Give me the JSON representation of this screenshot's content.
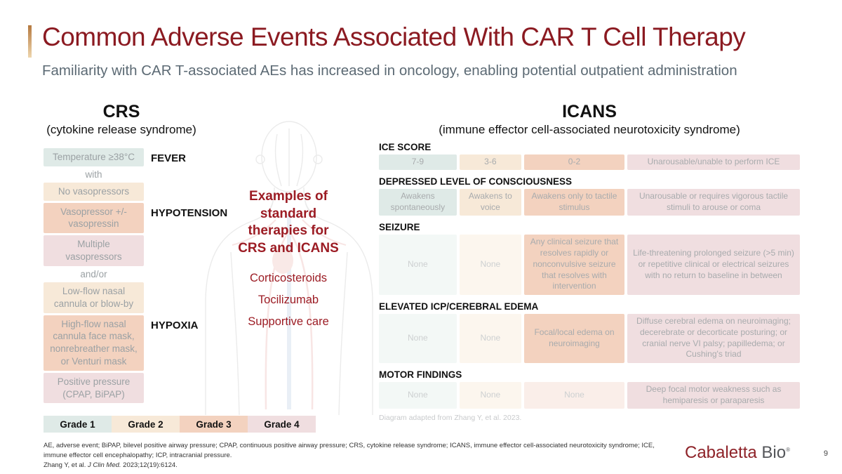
{
  "header": {
    "title": "Common Adverse Events Associated With CAR T Cell Therapy",
    "subtitle": "Familiarity with CAR T-associated AEs has increased in oncology, enabling potential outpatient administration"
  },
  "grade_colors": {
    "g1": "#dfeae7",
    "g2": "#f7e9d8",
    "g3": "#f3d2bf",
    "g4": "#f0dee0",
    "g1_faded": "#f3f8f6",
    "g2_faded": "#fcf6ee",
    "g3_faded": "#faeee9"
  },
  "crs": {
    "heading": "CRS",
    "subheading": "(cytokine release syndrome)",
    "items": [
      {
        "type": "box",
        "text": "Temperature ≥38°C",
        "grade": "g1",
        "label": "FEVER"
      },
      {
        "type": "connector",
        "text": "with"
      },
      {
        "type": "box",
        "text": "No vasopressors",
        "grade": "g2"
      },
      {
        "type": "box",
        "text": "Vasopressor +/- vasopressin",
        "grade": "g3",
        "label": "HYPOTENSION"
      },
      {
        "type": "box",
        "text": "Multiple vasopressors",
        "grade": "g4"
      },
      {
        "type": "connector",
        "text": "and/or"
      },
      {
        "type": "box",
        "text": "Low-flow nasal cannula or blow-by",
        "grade": "g2"
      },
      {
        "type": "box",
        "text": "High-flow nasal cannula face mask, nonrebreather mask, or Venturi mask",
        "grade": "g3",
        "label": "HYPOXIA"
      },
      {
        "type": "box",
        "text": "Positive pressure (CPAP, BiPAP)",
        "grade": "g4"
      }
    ]
  },
  "therapies": {
    "heading_lines": [
      "Examples of",
      "standard",
      "therapies for",
      "CRS and ICANS"
    ],
    "items": [
      "Corticosteroids",
      "Tocilizumab",
      "Supportive care"
    ]
  },
  "icans": {
    "heading": "ICANS",
    "subheading": "(immune effector cell-associated neurotoxicity syndrome)",
    "rows": [
      {
        "category": "ICE SCORE",
        "cells": [
          {
            "text": "7-9",
            "grade": "g1"
          },
          {
            "text": "3-6",
            "grade": "g2"
          },
          {
            "text": "0-2",
            "grade": "g3"
          },
          {
            "text": "Unarousable/unable to perform ICE",
            "grade": "g4"
          }
        ]
      },
      {
        "category": "DEPRESSED LEVEL OF CONSCIOUSNESS",
        "cells": [
          {
            "text": "Awakens spontaneously",
            "grade": "g1"
          },
          {
            "text": "Awakens to voice",
            "grade": "g2"
          },
          {
            "text": "Awakens only to tactile stimulus",
            "grade": "g3"
          },
          {
            "text": "Unarousable or requires vigorous tactile stimuli to arouse or coma",
            "grade": "g4"
          }
        ]
      },
      {
        "category": "SEIZURE",
        "cells": [
          {
            "text": "None",
            "grade": "g1",
            "faded": true
          },
          {
            "text": "None",
            "grade": "g2",
            "faded": true
          },
          {
            "text": "Any clinical seizure that resolves rapidly or nonconvulsive seizure that resolves with intervention",
            "grade": "g3"
          },
          {
            "text": "Life-threatening prolonged seizure (>5 min) or repetitive clinical or electrical seizures with no return to baseline in between",
            "grade": "g4"
          }
        ]
      },
      {
        "category": "ELEVATED ICP/CEREBRAL EDEMA",
        "cells": [
          {
            "text": "None",
            "grade": "g1",
            "faded": true
          },
          {
            "text": "None",
            "grade": "g2",
            "faded": true
          },
          {
            "text": "Focal/local edema on neuroimaging",
            "grade": "g3"
          },
          {
            "text": "Diffuse cerebral edema on neuroimaging; decerebrate or decorticate posturing; or cranial nerve VI palsy; papilledema; or Cushing's triad",
            "grade": "g4"
          }
        ]
      },
      {
        "category": "MOTOR FINDINGS",
        "cells": [
          {
            "text": "None",
            "grade": "g1",
            "faded": true
          },
          {
            "text": "None",
            "grade": "g2",
            "faded": true
          },
          {
            "text": "None",
            "grade": "g3",
            "faded": true
          },
          {
            "text": "Deep focal motor weakness such as hemiparesis or paraparesis",
            "grade": "g4"
          }
        ]
      }
    ],
    "note": "Diagram adapted from Zhang Y, et al. 2023."
  },
  "legend": {
    "items": [
      {
        "label": "Grade 1",
        "grade": "g1"
      },
      {
        "label": "Grade 2",
        "grade": "g2"
      },
      {
        "label": "Grade 3",
        "grade": "g3"
      },
      {
        "label": "Grade 4",
        "grade": "g4"
      }
    ]
  },
  "footer": {
    "abbreviations": "AE, adverse event; BiPAP, bilevel positive airway pressure; CPAP, continuous positive airway pressure; CRS, cytokine release syndrome; ICANS, immune effector cell-associated neurotoxicity syndrome; ICE, immune effector cell encephalopathy; ICP, intracranial pressure.",
    "citation_pre": "Zhang Y, et al. ",
    "citation_italic": "J Clin Med.",
    "citation_post": " 2023;12(19):6124.",
    "logo_primary": "Cabaletta",
    "logo_secondary": " Bio",
    "logo_mark": "®",
    "page_number": "9"
  }
}
